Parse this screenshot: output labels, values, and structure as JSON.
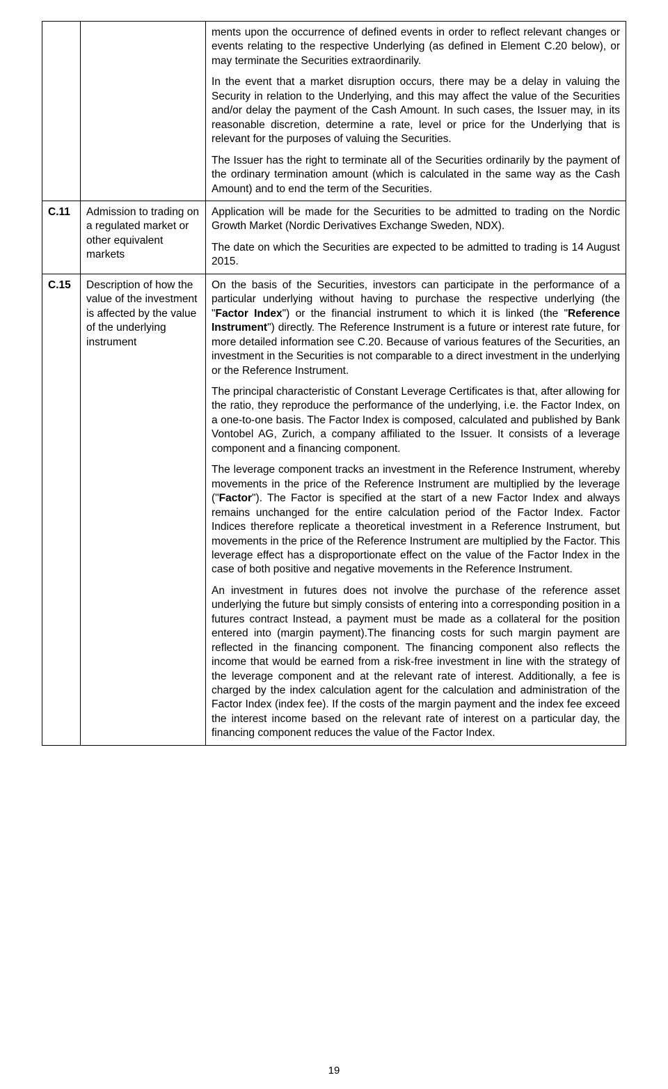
{
  "page_number": "19",
  "table": {
    "row_top": {
      "code": "",
      "title": "",
      "paragraphs": [
        "ments upon the occurrence of defined events in order to reflect relevant changes or events relating to the respective Underlying (as defined in Element C.20 below), or may terminate the Securities extraordinarily.",
        "In the event that a market disruption occurs, there may be a delay in valuing the Security in relation to the Underlying, and this may affect the value of the Securities and/or delay the payment of the Cash Amount. In such cases, the Issuer may, in its reasonable discretion, determine a rate, level or price for the Underlying that is relevant for the purposes of valuing the Securities.",
        "The Issuer has the right to terminate all of the Securities ordinarily by the payment of the ordinary termination amount (which is calculated in the same way as the Cash Amount) and to end the term of the Securities."
      ]
    },
    "row_c11": {
      "code": "C.11",
      "title": "Admission to trading on a regulated market or other equivalent markets",
      "paragraphs": [
        "Application will be made for the Securities to be admitted to trading on the Nordic Growth Market (Nordic Derivatives Exchange Sweden, NDX).",
        "The date on which the Securities are expected to be admitted to trading is 14 August 2015."
      ]
    },
    "row_c15": {
      "code": "C.15",
      "title": "Description of how the value of the investment is affected by the value of the underlying instrument",
      "p1_a": "On the basis of the Securities, investors can participate in the performance of a particular underlying without having to purchase the respective underlying (the \"",
      "p1_b1": "Factor Index",
      "p1_c": "\") or the financial instrument to which it is linked (the \"",
      "p1_b2": "Reference Instrument",
      "p1_d": "\") directly. The Reference Instrument is a future or interest rate future, for more detailed information see C.20. Because of various features of the Securities, an investment in the Securities is not comparable to a direct investment in the underlying or the Reference Instrument.",
      "p2": "The principal characteristic of Constant Leverage Certificates is that, after allowing for the ratio, they reproduce the performance of the underlying, i.e. the Factor Index, on a one-to-one basis. The Factor Index is composed, calculated and published by Bank Vontobel AG, Zurich, a company affiliated to the Issuer. It consists of a leverage component and a financing component.",
      "p3_a": "The leverage component tracks an investment in the Reference Instrument, whereby movements in the price of the Reference Instrument are multiplied by the leverage (\"",
      "p3_b": "Factor",
      "p3_c": "\"). The Factor is specified at the start of a new Factor Index and always remains unchanged for the entire calculation period of the Factor Index. Factor Indices therefore replicate a theoretical investment in a Reference Instrument, but movements in the price of the Reference Instrument are multiplied by the Factor. This leverage effect has a disproportionate effect on the value of the Factor Index in the case of both positive and negative movements in the Reference Instrument.",
      "p4": "An investment in futures does not involve the purchase of the reference asset underlying the future but simply consists of entering into a corresponding position in a futures contract Instead, a payment must be made as a collateral for the position entered into (margin payment).The financing costs for such margin payment are reflected in the financing component. The financing component also reflects the income that would be earned from a risk-free investment in line with the strategy of the leverage component and at the relevant rate of interest. Additionally, a fee is charged by the index calculation agent for the calculation and administration of the Factor Index (index fee). If the costs of the margin payment and the index fee exceed the interest income based on the relevant rate of interest on a particular day, the financing component reduces the value of the Factor Index."
    }
  }
}
